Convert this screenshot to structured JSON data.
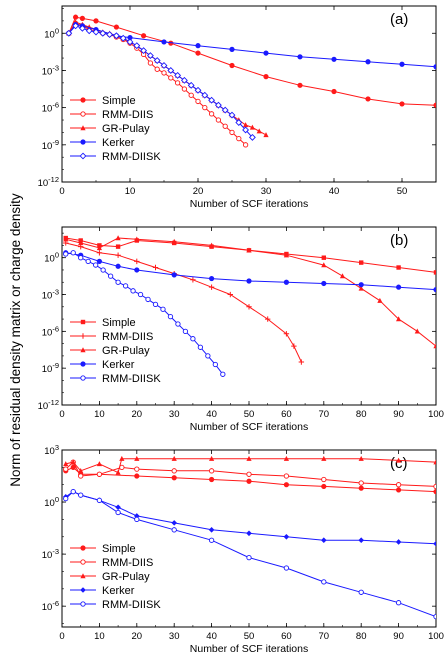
{
  "figure": {
    "shared_ylabel": "Norm of residual density matrix or charge density",
    "colors": {
      "red": "#ff1a1a",
      "blue": "#1a1aff",
      "black": "#000000"
    }
  },
  "chart_data": [
    {
      "type": "line",
      "panel_label": "(a)",
      "xlabel": "Number of SCF iterations",
      "ylabel": "",
      "xlim": [
        0,
        55
      ],
      "ylim_log10": [
        -12,
        2.2
      ],
      "y_scale": "log",
      "xticks": [
        0,
        10,
        20,
        30,
        40,
        50
      ],
      "yticks_log10": [
        -12,
        -9,
        -6,
        -3,
        0
      ],
      "ytick_labels": [
        "10-12",
        "10-9",
        "10-6",
        "10-3",
        "100"
      ],
      "grid": false,
      "legend_position": "bottom-left",
      "series": [
        {
          "name": "Simple",
          "color": "#ff1a1a",
          "marker": "filled-circle",
          "x": [
            1,
            2,
            3,
            5,
            8,
            12,
            16,
            20,
            25,
            30,
            35,
            40,
            45,
            50,
            55
          ],
          "log10_y": [
            0,
            1.3,
            1.2,
            1,
            0.5,
            -0.2,
            -0.8,
            -1.6,
            -2.6,
            -3.5,
            -4.2,
            -4.7,
            -5.3,
            -5.7,
            -5.8
          ]
        },
        {
          "name": "RMM-DIIS",
          "color": "#ff1a1a",
          "marker": "open-circle",
          "x": [
            1,
            2,
            3,
            4,
            5,
            6,
            7,
            8,
            9,
            10,
            11,
            12,
            13,
            14,
            15,
            16,
            17,
            18,
            19,
            20,
            21,
            22,
            23,
            24,
            25,
            26,
            27
          ],
          "log10_y": [
            0,
            0.8,
            0.6,
            0.3,
            0.2,
            0,
            -0.1,
            -0.3,
            -0.5,
            -0.8,
            -1.2,
            -1.7,
            -2.4,
            -2.9,
            -3.2,
            -3.6,
            -4.0,
            -4.5,
            -5.0,
            -5.5,
            -6.0,
            -6.5,
            -7.0,
            -7.5,
            -8.0,
            -8.5,
            -9.0
          ]
        },
        {
          "name": "GR-Pulay",
          "color": "#ff1a1a",
          "marker": "filled-triangle",
          "x": [
            1,
            2,
            3,
            4,
            5,
            6,
            7,
            8,
            9,
            10,
            11,
            12,
            13,
            14,
            15,
            16,
            17,
            18,
            19,
            20,
            21,
            22,
            23,
            24,
            25,
            26,
            27,
            28,
            29,
            30
          ],
          "log10_y": [
            0,
            0.9,
            0.7,
            0.5,
            0.3,
            0.1,
            0,
            -0.2,
            -0.4,
            -0.7,
            -1.0,
            -1.4,
            -1.8,
            -2.2,
            -2.6,
            -3.0,
            -3.4,
            -3.8,
            -4.2,
            -4.6,
            -5.0,
            -5.4,
            -5.8,
            -6.2,
            -6.6,
            -7.0,
            -7.4,
            -7.6,
            -7.9,
            -8.2
          ]
        },
        {
          "name": "Kerker",
          "color": "#1a1aff",
          "marker": "filled-circle",
          "x": [
            1,
            2,
            3,
            5,
            8,
            10,
            15,
            20,
            25,
            30,
            35,
            40,
            45,
            50,
            55
          ],
          "log10_y": [
            0,
            0.7,
            0.6,
            0.3,
            -0.2,
            -0.35,
            -0.7,
            -1.0,
            -1.3,
            -1.6,
            -1.9,
            -2.1,
            -2.3,
            -2.5,
            -2.7
          ]
        },
        {
          "name": "RMM-DIISK",
          "color": "#1a1aff",
          "marker": "open-diamond",
          "x": [
            1,
            2,
            3,
            4,
            5,
            6,
            7,
            8,
            9,
            10,
            11,
            12,
            13,
            14,
            15,
            16,
            17,
            18,
            19,
            20,
            21,
            22,
            23,
            24,
            25,
            26,
            27,
            28
          ],
          "log10_y": [
            0,
            0.6,
            0.4,
            0.2,
            0.1,
            0,
            -0.1,
            -0.2,
            -0.4,
            -0.7,
            -1.0,
            -1.4,
            -1.8,
            -2.2,
            -2.6,
            -3.0,
            -3.4,
            -3.8,
            -4.2,
            -4.6,
            -5.0,
            -5.4,
            -5.8,
            -6.2,
            -6.6,
            -7.2,
            -7.8,
            -8.4
          ]
        }
      ]
    },
    {
      "type": "line",
      "panel_label": "(b)",
      "xlabel": "Number of SCF iterations",
      "ylabel": "",
      "xlim": [
        0,
        100
      ],
      "ylim_log10": [
        -12,
        2.5
      ],
      "y_scale": "log",
      "xticks": [
        0,
        10,
        20,
        30,
        40,
        50,
        60,
        70,
        80,
        90,
        100
      ],
      "yticks_log10": [
        -12,
        -9,
        -6,
        -3,
        0
      ],
      "ytick_labels": [
        "10-12",
        "10-9",
        "10-6",
        "10-3",
        "100"
      ],
      "grid": false,
      "legend_position": "bottom-left",
      "series": [
        {
          "name": "Simple",
          "color": "#ff1a1a",
          "marker": "filled-square",
          "x": [
            1,
            5,
            10,
            15,
            20,
            30,
            40,
            50,
            60,
            70,
            80,
            90,
            100
          ],
          "log10_y": [
            1.6,
            1.4,
            1.0,
            0.9,
            1.4,
            1.2,
            0.9,
            0.6,
            0.3,
            0,
            -0.4,
            -0.8,
            -1.2
          ]
        },
        {
          "name": "RMM-DIIS",
          "color": "#ff1a1a",
          "marker": "plus",
          "x": [
            1,
            5,
            10,
            15,
            20,
            25,
            30,
            35,
            40,
            45,
            50,
            55,
            60,
            62,
            64
          ],
          "log10_y": [
            1.2,
            0.9,
            0.4,
            0.2,
            -0.3,
            -0.8,
            -1.3,
            -1.8,
            -2.4,
            -3.0,
            -4.0,
            -5.0,
            -6.2,
            -7.2,
            -8.5
          ]
        },
        {
          "name": "GR-Pulay",
          "color": "#ff1a1a",
          "marker": "filled-triangle",
          "x": [
            1,
            5,
            10,
            15,
            20,
            30,
            40,
            50,
            60,
            70,
            75,
            80,
            85,
            90,
            95,
            100
          ],
          "log10_y": [
            1.5,
            1.2,
            0.8,
            1.6,
            1.5,
            1.3,
            1.0,
            0.6,
            0.2,
            -0.6,
            -1.5,
            -2.5,
            -3.5,
            -5.0,
            -6.0,
            -7.2
          ]
        },
        {
          "name": "Kerker",
          "color": "#1a1aff",
          "marker": "filled-circle",
          "x": [
            1,
            5,
            10,
            15,
            20,
            30,
            40,
            50,
            60,
            70,
            80,
            90,
            100
          ],
          "log10_y": [
            0.4,
            0.2,
            -0.3,
            -0.7,
            -1.0,
            -1.4,
            -1.7,
            -1.9,
            -2.0,
            -2.1,
            -2.2,
            -2.4,
            -2.6
          ]
        },
        {
          "name": "RMM-DIISK",
          "color": "#1a1aff",
          "marker": "open-circle",
          "x": [
            1,
            3,
            5,
            7,
            9,
            11,
            13,
            15,
            17,
            19,
            21,
            23,
            25,
            27,
            29,
            31,
            33,
            35,
            37,
            39,
            41,
            43
          ],
          "log10_y": [
            0.3,
            0.4,
            0,
            -0.3,
            -0.6,
            -1.0,
            -1.5,
            -2.0,
            -2.3,
            -2.7,
            -3.0,
            -3.4,
            -3.8,
            -4.2,
            -4.8,
            -5.4,
            -6.0,
            -6.6,
            -7.3,
            -8.0,
            -8.7,
            -9.5
          ]
        }
      ]
    },
    {
      "type": "line",
      "panel_label": "(c)",
      "xlabel": "Number of SCF iterations",
      "ylabel": "",
      "xlim": [
        0,
        100
      ],
      "ylim_log10": [
        -7.2,
        3
      ],
      "y_scale": "log",
      "xticks": [
        0,
        10,
        20,
        30,
        40,
        50,
        60,
        70,
        80,
        90,
        100
      ],
      "yticks_log10": [
        -6,
        -3,
        0,
        3
      ],
      "ytick_labels": [
        "10-6",
        "10-3",
        "100",
        "103"
      ],
      "grid": false,
      "legend_position": "bottom-left",
      "series": [
        {
          "name": "Simple",
          "color": "#ff1a1a",
          "marker": "filled-circle",
          "x": [
            1,
            3,
            5,
            10,
            20,
            30,
            40,
            50,
            60,
            70,
            80,
            90,
            100
          ],
          "log10_y": [
            1.8,
            2.0,
            1.6,
            1.6,
            1.5,
            1.4,
            1.3,
            1.2,
            1.0,
            0.9,
            0.8,
            0.7,
            0.6
          ]
        },
        {
          "name": "RMM-DIIS",
          "color": "#ff1a1a",
          "marker": "open-circle",
          "x": [
            1,
            3,
            5,
            10,
            16,
            20,
            30,
            40,
            50,
            60,
            70,
            80,
            90,
            100
          ],
          "log10_y": [
            1.9,
            2.3,
            1.5,
            1.6,
            2.0,
            1.9,
            1.8,
            1.8,
            1.6,
            1.5,
            1.3,
            1.1,
            1.0,
            0.9
          ]
        },
        {
          "name": "GR-Pulay",
          "color": "#ff1a1a",
          "marker": "filled-triangle",
          "x": [
            1,
            3,
            5,
            10,
            15,
            16,
            20,
            30,
            40,
            50,
            60,
            70,
            80,
            90,
            100
          ],
          "log10_y": [
            2.2,
            2.3,
            1.8,
            2.2,
            1.7,
            2.5,
            2.5,
            2.5,
            2.5,
            2.5,
            2.5,
            2.5,
            2.5,
            2.4,
            2.3
          ]
        },
        {
          "name": "Kerker",
          "color": "#1a1aff",
          "marker": "filled-diamond",
          "x": [
            1,
            3,
            5,
            10,
            15,
            20,
            30,
            40,
            50,
            60,
            70,
            80,
            90,
            100
          ],
          "log10_y": [
            0.3,
            0.6,
            0.4,
            0.1,
            -0.3,
            -0.8,
            -1.2,
            -1.6,
            -1.8,
            -2.0,
            -2.2,
            -2.2,
            -2.3,
            -2.4
          ]
        },
        {
          "name": "RMM-DIISK",
          "color": "#1a1aff",
          "marker": "open-circle",
          "x": [
            1,
            3,
            5,
            10,
            15,
            20,
            30,
            40,
            50,
            60,
            70,
            80,
            90,
            100
          ],
          "log10_y": [
            0.2,
            0.6,
            0.4,
            0.1,
            -0.6,
            -1.0,
            -1.6,
            -2.2,
            -3.2,
            -3.8,
            -4.6,
            -5.2,
            -5.8,
            -6.6
          ]
        }
      ]
    }
  ]
}
